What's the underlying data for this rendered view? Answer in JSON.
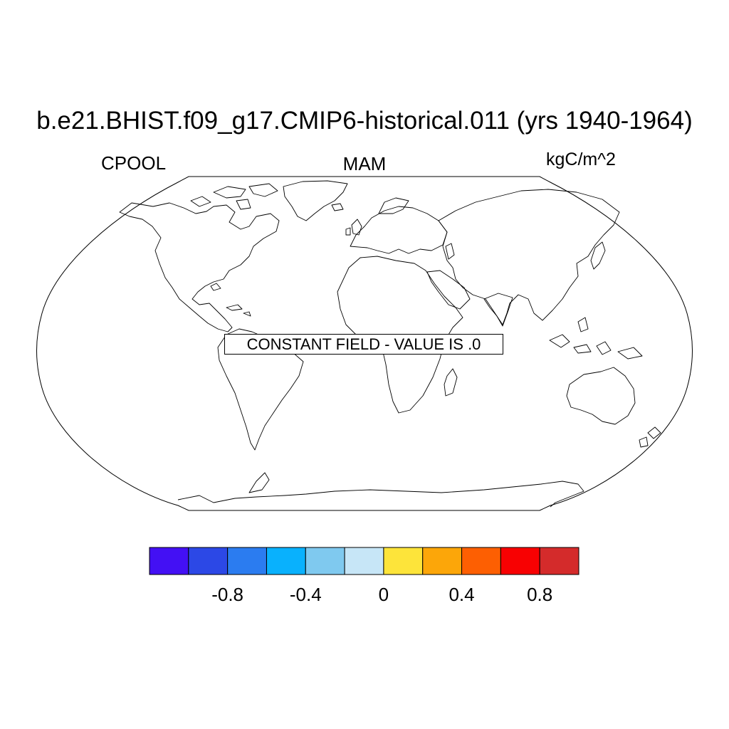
{
  "title": "b.e21.BHIST.f09_g17.CMIP6-historical.011 (yrs 1940-1964)",
  "left_label": "CPOOL",
  "center_label": "MAM",
  "right_label": "kgC/m^2",
  "map": {
    "projection": "Robinson",
    "message": "CONSTANT FIELD - VALUE IS .0",
    "coastline_color": "#000000"
  },
  "colorbar": {
    "colors": [
      "#4310f4",
      "#2c48e6",
      "#2b7cf0",
      "#09b1fd",
      "#7fc9ef",
      "#c7e6f7",
      "#fde43a",
      "#fca609",
      "#fd5f02",
      "#f80102",
      "#d42b2b"
    ],
    "tick_labels": [
      "-0.8",
      "-0.4",
      "0",
      "0.4",
      "0.8"
    ]
  }
}
